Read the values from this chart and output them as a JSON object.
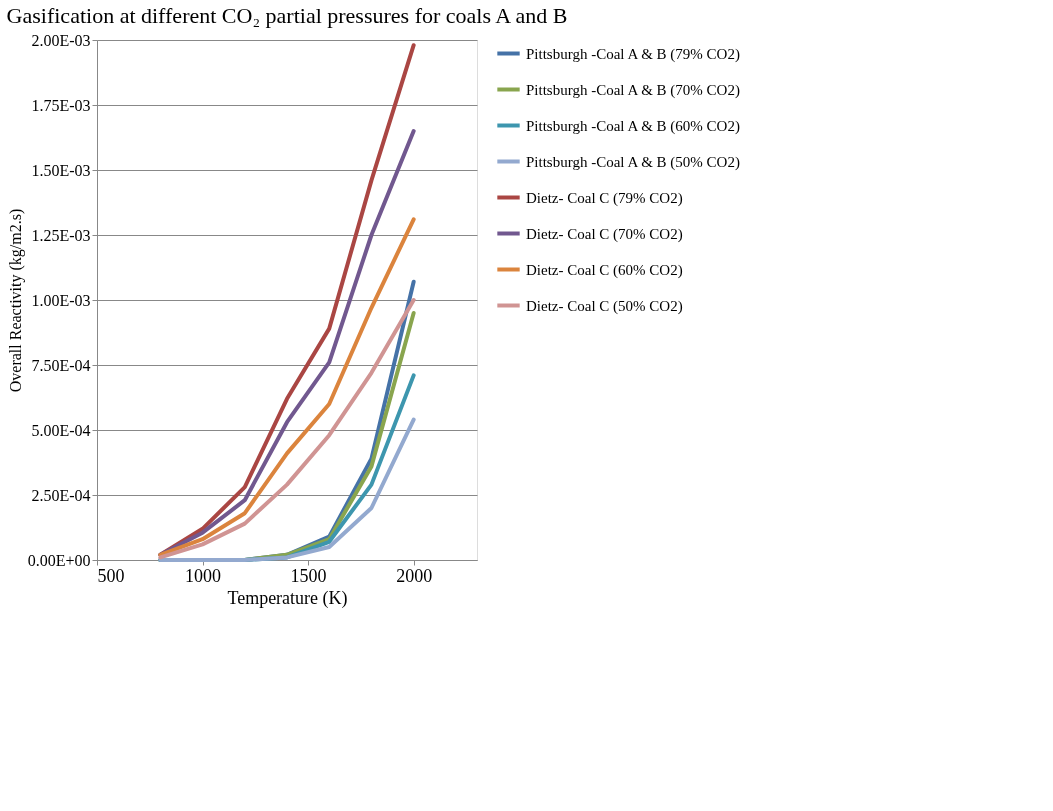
{
  "chart_data": {
    "type": "line",
    "title": "Gasification at different CO₂ partial pressures for coals A and B",
    "xlabel": "Temperature (K)",
    "ylabel": "Overall Reactivity (kg/m2.s)",
    "x": [
      800,
      1000,
      1200,
      1400,
      1600,
      1800,
      2000
    ],
    "series": [
      {
        "name": "Pittsburgh -Coal A & B (79% CO2)",
        "color": "#4572a7",
        "values": [
          0,
          0,
          0,
          2e-05,
          9e-05,
          0.00039,
          0.00107
        ]
      },
      {
        "name": "Pittsburgh -Coal A & B (70% CO2)",
        "color": "#89a54e",
        "values": [
          0,
          0,
          0,
          2e-05,
          8e-05,
          0.00036,
          0.00095
        ]
      },
      {
        "name": "Pittsburgh -Coal A & B (60% CO2)",
        "color": "#3d96ae",
        "values": [
          0,
          0,
          0,
          1e-05,
          7e-05,
          0.00029,
          0.00071
        ]
      },
      {
        "name": "Pittsburgh -Coal A & B (50% CO2)",
        "color": "#93a9cf",
        "values": [
          0,
          0,
          0,
          1e-05,
          5e-05,
          0.0002,
          0.00054
        ]
      },
      {
        "name": "Dietz- Coal C (79% CO2)",
        "color": "#aa4643",
        "values": [
          2e-05,
          0.00012,
          0.00028,
          0.00062,
          0.00089,
          0.00146,
          0.00198
        ]
      },
      {
        "name": "Dietz- Coal C (70% CO2)",
        "color": "#71588f",
        "values": [
          2e-05,
          0.000105,
          0.00023,
          0.00053,
          0.00076,
          0.00125,
          0.00165
        ]
      },
      {
        "name": "Dietz- Coal C  (60% CO2)",
        "color": "#db843d",
        "values": [
          2e-05,
          8e-05,
          0.00018,
          0.00041,
          0.0006,
          0.00097,
          0.00131
        ]
      },
      {
        "name": "Dietz- Coal C (50% CO2)",
        "color": "#d09493",
        "values": [
          1e-05,
          6e-05,
          0.00014,
          0.00029,
          0.00048,
          0.00072,
          0.001
        ]
      }
    ],
    "xlim": [
      500,
      2300
    ],
    "xticks": [
      500,
      1000,
      1500,
      2000
    ],
    "ylim": [
      0,
      0.002
    ],
    "yticks": [
      {
        "value": 0,
        "label": "0.00E+00"
      },
      {
        "value": 0.00025,
        "label": "2.50E-04"
      },
      {
        "value": 0.0005,
        "label": "5.00E-04"
      },
      {
        "value": 0.00075,
        "label": "7.50E-04"
      },
      {
        "value": 0.001,
        "label": "1.00E-03"
      },
      {
        "value": 0.00125,
        "label": "1.25E-03"
      },
      {
        "value": 0.0015,
        "label": "1.50E-03"
      },
      {
        "value": 0.00175,
        "label": "1.75E-03"
      },
      {
        "value": 0.002,
        "label": "2.00E-03"
      }
    ],
    "grid": "y",
    "legend": "right",
    "marker": "none",
    "line_style": "solid"
  }
}
